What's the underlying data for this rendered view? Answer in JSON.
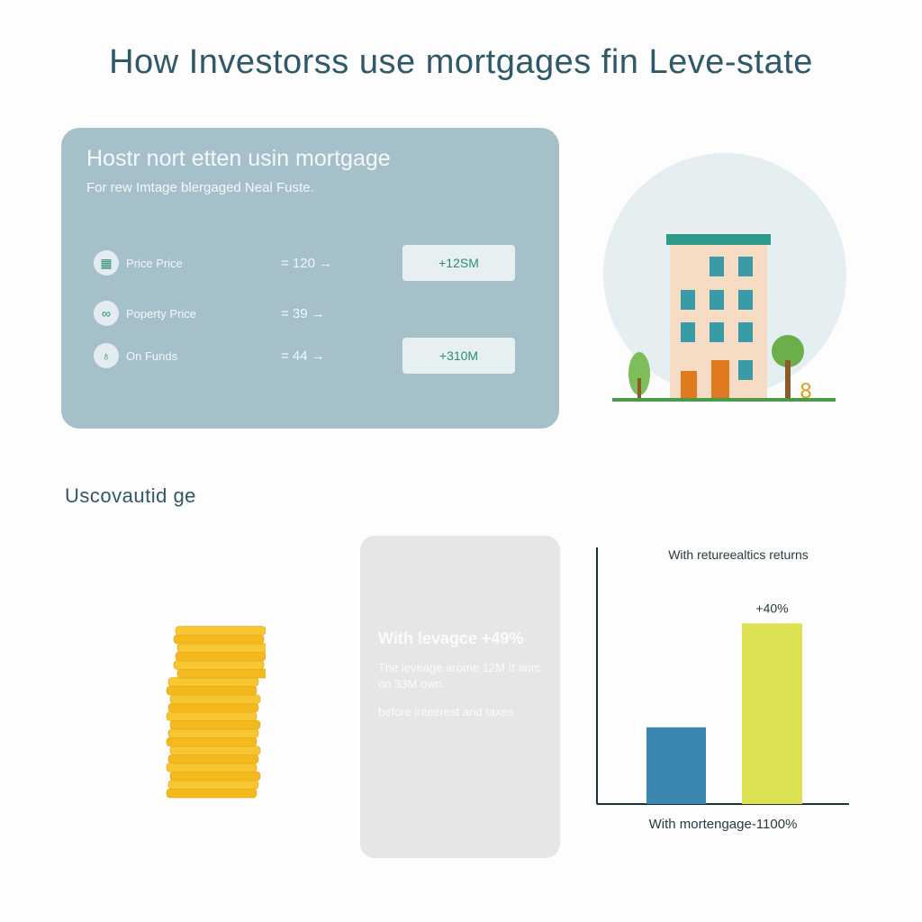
{
  "title": "How Investorss use mortgages fin Leve-state",
  "card": {
    "heading": "Hostr nort etten usin mortgage",
    "subheading": "For rew Imtage blergaged Neal Fuste.",
    "rows": [
      {
        "icon": "building-icon",
        "label": "Price Price",
        "value": "= 120 →",
        "box": "+12SM"
      },
      {
        "icon": "handshake-icon",
        "label": "Poperty Price",
        "value": "= 39 →",
        "box": ""
      },
      {
        "icon": "money-bag-icon",
        "label": "On Funds",
        "value": "= 44 →",
        "box": "+310M"
      }
    ]
  },
  "section_heading": "Uscovautid ge",
  "info_card": {
    "headline": "With levagce +49%",
    "body": "The leveage arome 12M It anrc on 33M own.",
    "note": "before inteerest and taxes"
  },
  "chart_data": {
    "type": "bar",
    "title": "With retureealtics returns",
    "xlabel": "With mortengage-1100%",
    "ylabel": "",
    "grid": false,
    "categories": [
      "",
      ""
    ],
    "values": [
      17,
      40
    ],
    "data_labels": [
      "",
      "+40%"
    ],
    "colors": [
      "#3a88b0",
      "#dde253"
    ]
  },
  "colors": {
    "title": "#2f5868",
    "card": "#a6c0ca",
    "accent": "#2f8a7a"
  }
}
